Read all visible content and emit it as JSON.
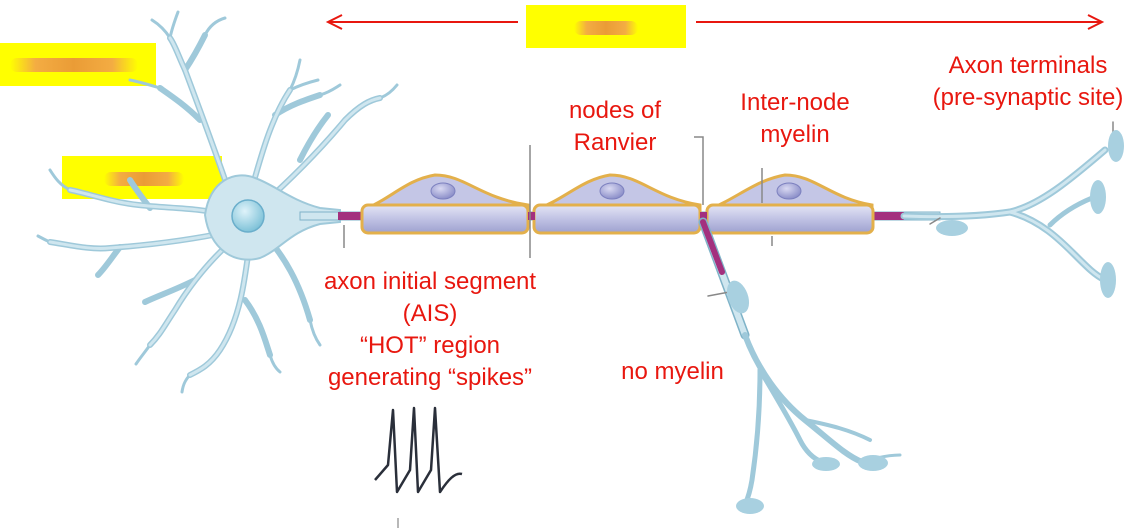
{
  "labels": {
    "ais_1": "axon initial segment",
    "ais_2": "(AIS)",
    "ais_3": "“HOT” region",
    "ais_4": "generating “spikes”",
    "nodes_1": "nodes of",
    "nodes_2": "Ranvier",
    "internode_1": "Inter-node",
    "internode_2": "myelin",
    "terminals_1": "Axon terminals",
    "terminals_2": "(pre-synaptic site)",
    "no_myelin": "no myelin"
  },
  "colors": {
    "label_text": "#e8170f",
    "arrow": "#e8170f",
    "highlight": "#ffff00",
    "neuron_fill": "#cfe6ef",
    "neuron_stroke": "#7fb3c8",
    "myelin_fill": "#c4c6e6",
    "myelin_border": "#e3b04b",
    "node": "#a3307e",
    "spike": "#2a2f3a"
  },
  "redacted_highlights": [
    "top-center",
    "left-top",
    "left-middle"
  ]
}
